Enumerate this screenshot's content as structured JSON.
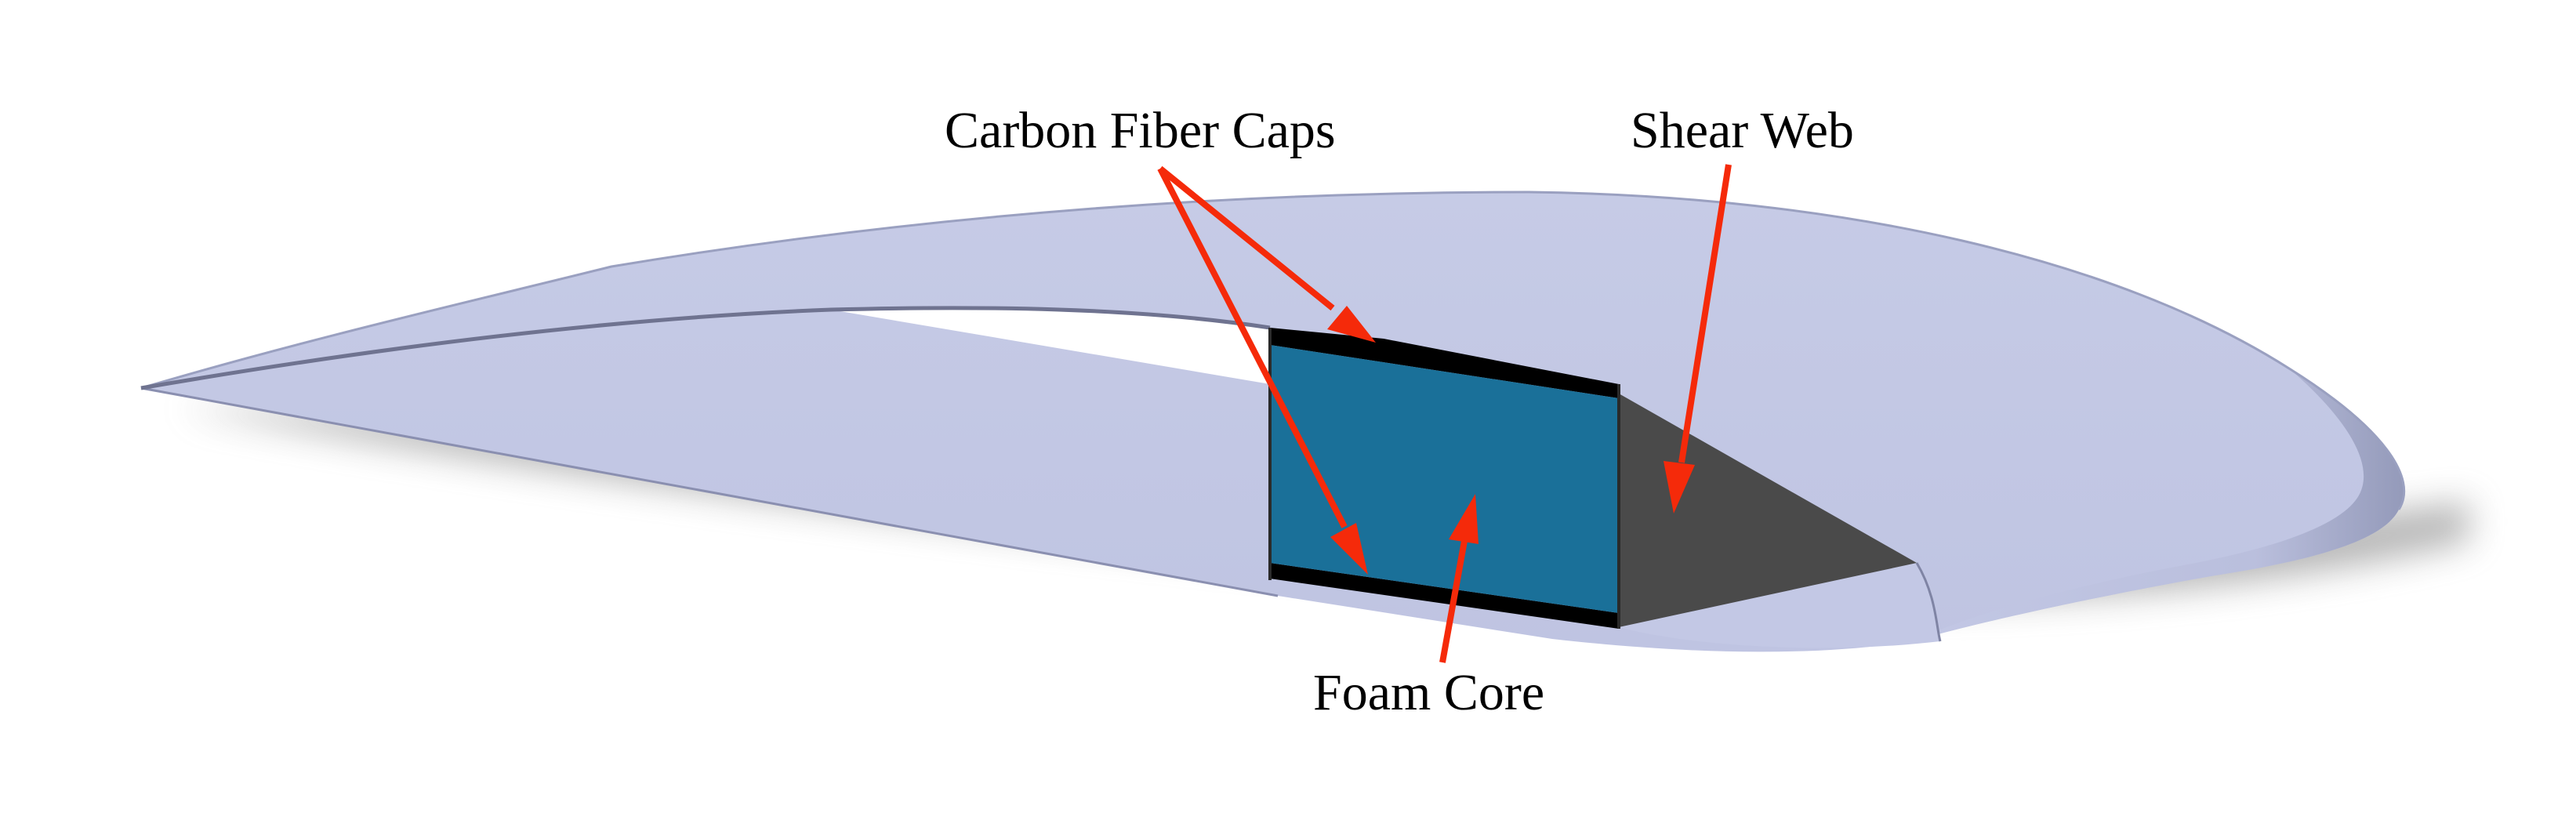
{
  "labels": {
    "carbon_fiber_caps": "Carbon Fiber Caps",
    "shear_web": "Shear Web",
    "foam_core": "Foam Core"
  },
  "colors": {
    "wing_skin": "#c3c8e5",
    "foam_core": "#1a7099",
    "shear_web": "#4a4a4a",
    "carbon_cap": "#000000",
    "arrow": "#f52a0a"
  }
}
